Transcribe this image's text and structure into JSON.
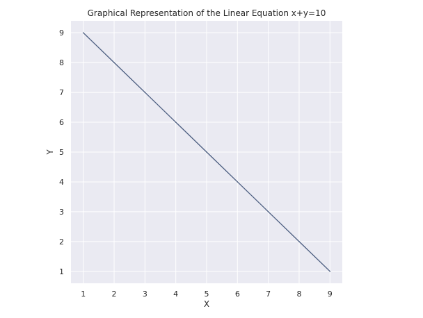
{
  "chart_data": {
    "type": "line",
    "title": "Graphical Representation of the Linear Equation x+y=10",
    "xlabel": "X",
    "ylabel": "Y",
    "x": [
      1,
      2,
      3,
      4,
      5,
      6,
      7,
      8,
      9
    ],
    "series": [
      {
        "values": [
          9,
          8,
          7,
          6,
          5,
          4,
          3,
          2,
          1
        ]
      }
    ],
    "xticks": [
      "1",
      "2",
      "3",
      "4",
      "5",
      "6",
      "7",
      "8",
      "9"
    ],
    "yticks": [
      "1",
      "2",
      "3",
      "4",
      "5",
      "6",
      "7",
      "8",
      "9"
    ],
    "xlim": [
      0.6,
      9.4
    ],
    "ylim": [
      0.6,
      9.4
    ],
    "grid": true,
    "colors": {
      "background": "#eaeaf2",
      "grid": "#ffffff",
      "line": "#4c5e80"
    }
  }
}
